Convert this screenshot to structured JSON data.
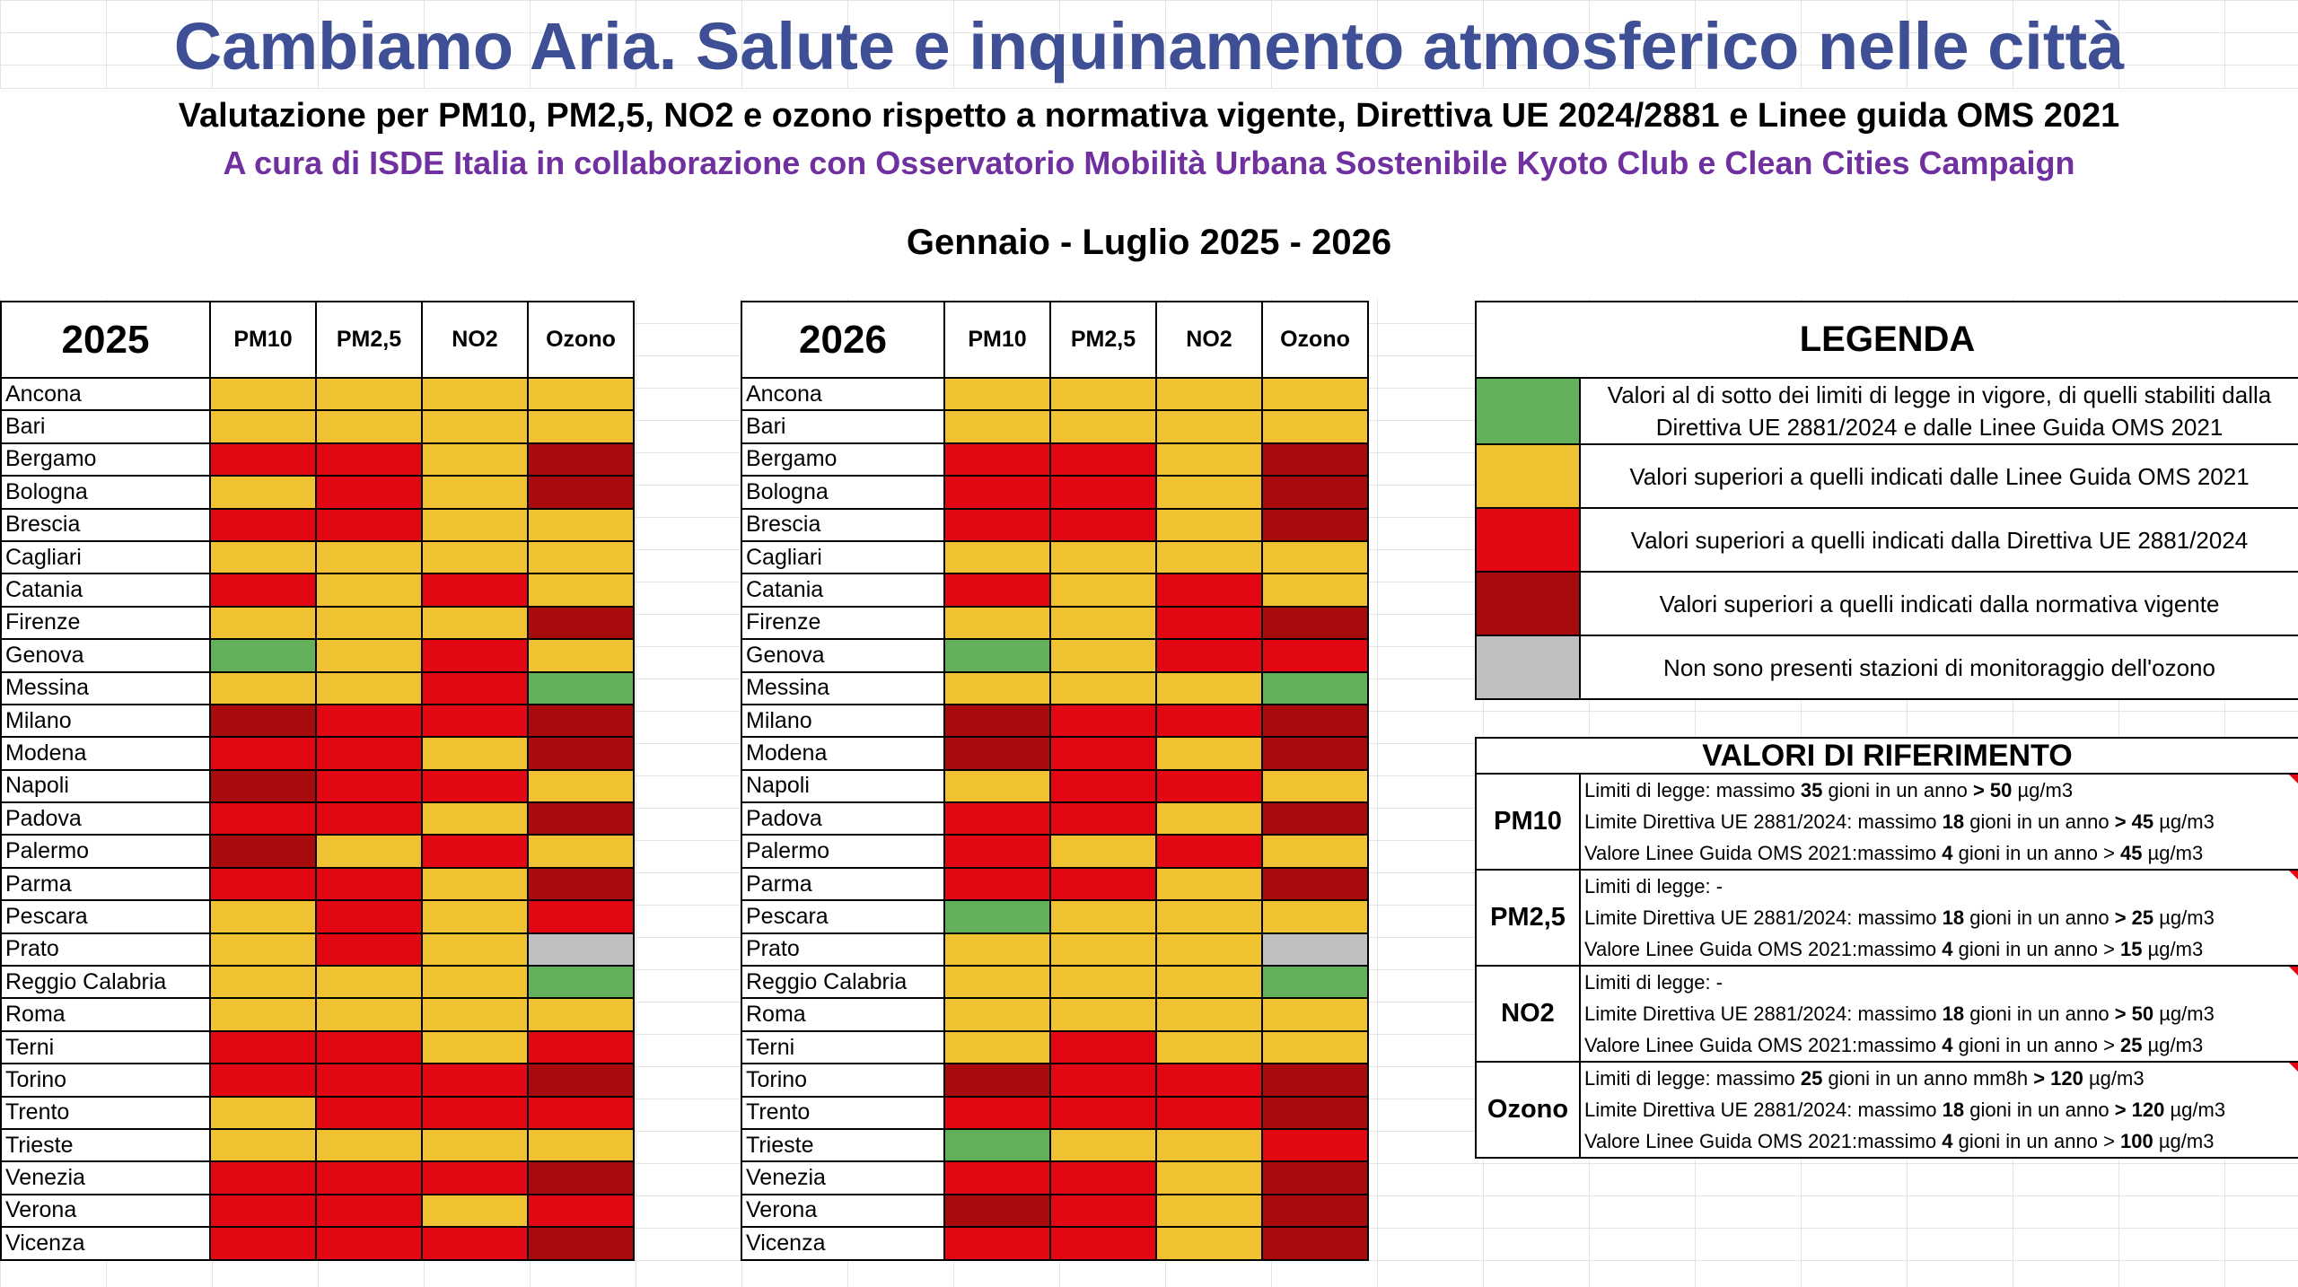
{
  "header": {
    "title": "Cambiamo Aria. Salute e inquinamento atmosferico nelle città",
    "subtitle": "Valutazione per PM10, PM2,5, NO2 e ozono rispetto a normativa vigente, Direttiva UE 2024/2881 e Linee guida OMS 2021",
    "credits": "A cura di ISDE Italia in collaborazione con Osservatorio Mobilità Urbana Sostenibile Kyoto Club e Clean Cities Campaign",
    "period": "Gennaio - Luglio 2025 - 2026"
  },
  "colors": {
    "G": "#63b05a",
    "Y": "#f0c232",
    "R": "#e30613",
    "D": "#a70b0b",
    "X": "#c0c0c0",
    "title": "#3f4f95",
    "credits": "#7030a0"
  },
  "columns": [
    "PM10",
    "PM2,5",
    "NO2",
    "Ozono"
  ],
  "cities": [
    "Ancona",
    "Bari",
    "Bergamo",
    "Bologna",
    "Brescia",
    "Cagliari",
    "Catania",
    "Firenze",
    "Genova",
    "Messina",
    "Milano",
    "Modena",
    "Napoli",
    "Padova",
    "Palermo",
    "Parma",
    "Pescara",
    "Prato",
    "Reggio Calabria",
    "Roma",
    "Terni",
    "Torino",
    "Trento",
    "Trieste",
    "Venezia",
    "Verona",
    "Vicenza"
  ],
  "tables": [
    {
      "year": "2025",
      "rows": [
        [
          "Y",
          "Y",
          "Y",
          "Y"
        ],
        [
          "Y",
          "Y",
          "Y",
          "Y"
        ],
        [
          "R",
          "R",
          "Y",
          "D"
        ],
        [
          "Y",
          "R",
          "Y",
          "D"
        ],
        [
          "R",
          "R",
          "Y",
          "Y"
        ],
        [
          "Y",
          "Y",
          "Y",
          "Y"
        ],
        [
          "R",
          "Y",
          "R",
          "Y"
        ],
        [
          "Y",
          "Y",
          "Y",
          "D"
        ],
        [
          "G",
          "Y",
          "R",
          "Y"
        ],
        [
          "Y",
          "Y",
          "R",
          "G"
        ],
        [
          "D",
          "R",
          "R",
          "D"
        ],
        [
          "R",
          "R",
          "Y",
          "D"
        ],
        [
          "D",
          "R",
          "R",
          "Y"
        ],
        [
          "R",
          "R",
          "Y",
          "D"
        ],
        [
          "D",
          "Y",
          "R",
          "Y"
        ],
        [
          "R",
          "R",
          "Y",
          "D"
        ],
        [
          "Y",
          "R",
          "Y",
          "R"
        ],
        [
          "Y",
          "R",
          "Y",
          "X"
        ],
        [
          "Y",
          "Y",
          "Y",
          "G"
        ],
        [
          "Y",
          "Y",
          "Y",
          "Y"
        ],
        [
          "R",
          "R",
          "Y",
          "R"
        ],
        [
          "R",
          "R",
          "R",
          "D"
        ],
        [
          "Y",
          "R",
          "R",
          "R"
        ],
        [
          "Y",
          "Y",
          "Y",
          "Y"
        ],
        [
          "R",
          "R",
          "R",
          "D"
        ],
        [
          "R",
          "R",
          "Y",
          "R"
        ],
        [
          "R",
          "R",
          "R",
          "D"
        ]
      ]
    },
    {
      "year": "2026",
      "rows": [
        [
          "Y",
          "Y",
          "Y",
          "Y"
        ],
        [
          "Y",
          "Y",
          "Y",
          "Y"
        ],
        [
          "R",
          "R",
          "Y",
          "D"
        ],
        [
          "R",
          "R",
          "Y",
          "D"
        ],
        [
          "R",
          "R",
          "Y",
          "D"
        ],
        [
          "Y",
          "Y",
          "Y",
          "Y"
        ],
        [
          "R",
          "Y",
          "R",
          "Y"
        ],
        [
          "Y",
          "Y",
          "R",
          "D"
        ],
        [
          "G",
          "Y",
          "R",
          "R"
        ],
        [
          "Y",
          "Y",
          "Y",
          "G"
        ],
        [
          "D",
          "R",
          "R",
          "D"
        ],
        [
          "D",
          "R",
          "Y",
          "D"
        ],
        [
          "Y",
          "R",
          "R",
          "Y"
        ],
        [
          "R",
          "R",
          "Y",
          "D"
        ],
        [
          "R",
          "Y",
          "R",
          "Y"
        ],
        [
          "R",
          "R",
          "Y",
          "D"
        ],
        [
          "G",
          "Y",
          "Y",
          "Y"
        ],
        [
          "Y",
          "Y",
          "Y",
          "X"
        ],
        [
          "Y",
          "Y",
          "Y",
          "G"
        ],
        [
          "Y",
          "Y",
          "Y",
          "Y"
        ],
        [
          "Y",
          "R",
          "Y",
          "Y"
        ],
        [
          "D",
          "R",
          "R",
          "D"
        ],
        [
          "R",
          "R",
          "R",
          "D"
        ],
        [
          "G",
          "Y",
          "Y",
          "R"
        ],
        [
          "R",
          "R",
          "Y",
          "D"
        ],
        [
          "D",
          "R",
          "Y",
          "D"
        ],
        [
          "R",
          "R",
          "Y",
          "D"
        ]
      ]
    }
  ],
  "legend": {
    "title": "LEGENDA",
    "items": [
      {
        "color": "G",
        "text": "Valori al di sotto dei limiti di legge in vigore, di quelli stabiliti dalla Direttiva UE 2881/2024 e dalle Linee Guida OMS 2021"
      },
      {
        "color": "Y",
        "text": "Valori superiori a quelli indicati dalle Linee Guida OMS 2021"
      },
      {
        "color": "R",
        "text": "Valori superiori a quelli indicati dalla Direttiva UE 2881/2024"
      },
      {
        "color": "D",
        "text": "Valori superiori a quelli indicati dalla normativa vigente"
      },
      {
        "color": "X",
        "text": "Non sono presenti stazioni di monitoraggio dell'ozono"
      }
    ]
  },
  "references": {
    "title": "VALORI DI RIFERIMENTO",
    "groups": [
      {
        "pollutant": "PM10",
        "lines": [
          [
            "Limiti di legge: massimo ",
            "35",
            " gioni in un anno ",
            "> 50",
            " µg/m3"
          ],
          [
            "Limite Direttiva UE 2881/2024: massimo ",
            "18",
            " gioni in un anno ",
            "> 45",
            " µg/m3"
          ],
          [
            "Valore Linee Guida OMS 2021:massimo ",
            "4",
            " gioni in un anno > ",
            "45",
            " µg/m3"
          ]
        ]
      },
      {
        "pollutant": "PM2,5",
        "lines": [
          [
            "Limiti di legge: -",
            "",
            "",
            "",
            ""
          ],
          [
            "Limite Direttiva UE 2881/2024: massimo ",
            "18",
            " gioni in un anno ",
            "> 25",
            " µg/m3"
          ],
          [
            "Valore Linee Guida OMS 2021:massimo ",
            "4",
            " gioni in un anno > ",
            "15",
            " µg/m3"
          ]
        ]
      },
      {
        "pollutant": "NO2",
        "lines": [
          [
            "Limiti di legge: -",
            "",
            "",
            "",
            ""
          ],
          [
            "Limite Direttiva UE 2881/2024: massimo ",
            "18",
            " gioni in un anno ",
            "> 50",
            " µg/m3"
          ],
          [
            "Valore Linee Guida OMS 2021:massimo ",
            "4",
            " gioni in un anno > ",
            "25",
            " µg/m3"
          ]
        ]
      },
      {
        "pollutant": "Ozono",
        "lines": [
          [
            "Limiti di legge: massimo ",
            "25",
            " gioni in un anno mm8h ",
            "> 120",
            " µg/m3"
          ],
          [
            "Limite Direttiva UE 2881/2024: massimo ",
            "18",
            " gioni in un anno ",
            "> 120",
            " µg/m3"
          ],
          [
            "Valore Linee Guida OMS 2021:massimo ",
            "4",
            " gioni in un anno > ",
            "100",
            " µg/m3"
          ]
        ]
      }
    ]
  }
}
